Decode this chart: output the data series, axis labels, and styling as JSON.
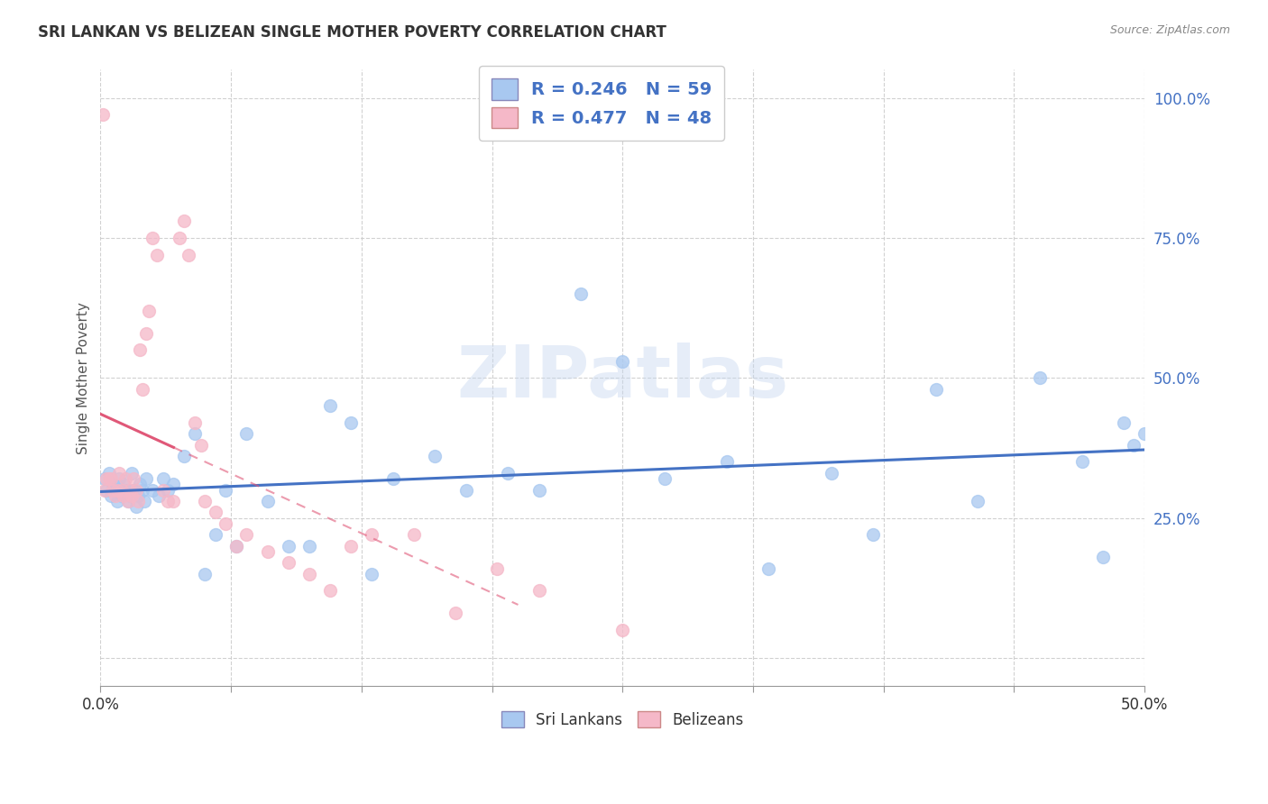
{
  "title": "SRI LANKAN VS BELIZEAN SINGLE MOTHER POVERTY CORRELATION CHART",
  "source": "Source: ZipAtlas.com",
  "ylabel": "Single Mother Poverty",
  "legend_label1": "Sri Lankans",
  "legend_label2": "Belizeans",
  "sri_lankan_R": "0.246",
  "sri_lankan_N": "59",
  "belizean_R": "0.477",
  "belizean_N": "48",
  "xlim": [
    0.0,
    0.5
  ],
  "ylim": [
    -0.05,
    1.05
  ],
  "yticks": [
    0.0,
    0.25,
    0.5,
    0.75,
    1.0
  ],
  "ytick_labels": [
    "",
    "25.0%",
    "50.0%",
    "75.0%",
    "100.0%"
  ],
  "xticks": [
    0.0,
    0.0625,
    0.125,
    0.1875,
    0.25,
    0.3125,
    0.375,
    0.4375,
    0.5
  ],
  "xtick_labels_show": [
    "0.0%",
    "",
    "",
    "",
    "",
    "",
    "",
    "",
    "50.0%"
  ],
  "sri_lankan_color": "#a8c8f0",
  "belizean_color": "#f5b8c8",
  "regression_sri_color": "#4472c4",
  "regression_beli_color": "#e05878",
  "watermark": "ZIPatlas",
  "background_color": "#ffffff",
  "sri_lankans_x": [
    0.002,
    0.003,
    0.004,
    0.005,
    0.006,
    0.007,
    0.008,
    0.009,
    0.01,
    0.011,
    0.012,
    0.013,
    0.014,
    0.015,
    0.016,
    0.017,
    0.018,
    0.019,
    0.02,
    0.021,
    0.022,
    0.025,
    0.028,
    0.03,
    0.032,
    0.035,
    0.04,
    0.045,
    0.05,
    0.055,
    0.06,
    0.065,
    0.07,
    0.08,
    0.09,
    0.1,
    0.11,
    0.12,
    0.13,
    0.14,
    0.16,
    0.175,
    0.195,
    0.21,
    0.23,
    0.25,
    0.27,
    0.3,
    0.32,
    0.35,
    0.37,
    0.4,
    0.42,
    0.45,
    0.47,
    0.48,
    0.49,
    0.495,
    0.5
  ],
  "sri_lankans_y": [
    0.32,
    0.3,
    0.33,
    0.29,
    0.31,
    0.3,
    0.28,
    0.32,
    0.29,
    0.31,
    0.3,
    0.28,
    0.29,
    0.33,
    0.3,
    0.27,
    0.29,
    0.31,
    0.3,
    0.28,
    0.32,
    0.3,
    0.29,
    0.32,
    0.3,
    0.31,
    0.36,
    0.4,
    0.15,
    0.22,
    0.3,
    0.2,
    0.4,
    0.28,
    0.2,
    0.2,
    0.45,
    0.42,
    0.15,
    0.32,
    0.36,
    0.3,
    0.33,
    0.3,
    0.65,
    0.53,
    0.32,
    0.35,
    0.16,
    0.33,
    0.22,
    0.48,
    0.28,
    0.5,
    0.35,
    0.18,
    0.42,
    0.38,
    0.4
  ],
  "belizeans_x": [
    0.001,
    0.002,
    0.003,
    0.004,
    0.005,
    0.006,
    0.007,
    0.008,
    0.009,
    0.01,
    0.011,
    0.012,
    0.013,
    0.014,
    0.015,
    0.016,
    0.017,
    0.018,
    0.019,
    0.02,
    0.022,
    0.023,
    0.025,
    0.027,
    0.03,
    0.032,
    0.035,
    0.038,
    0.04,
    0.042,
    0.045,
    0.048,
    0.05,
    0.055,
    0.06,
    0.065,
    0.07,
    0.08,
    0.09,
    0.1,
    0.11,
    0.12,
    0.13,
    0.15,
    0.17,
    0.19,
    0.21,
    0.25
  ],
  "belizeans_y": [
    0.97,
    0.3,
    0.32,
    0.32,
    0.32,
    0.3,
    0.29,
    0.3,
    0.33,
    0.3,
    0.29,
    0.32,
    0.28,
    0.3,
    0.29,
    0.32,
    0.3,
    0.28,
    0.55,
    0.48,
    0.58,
    0.62,
    0.75,
    0.72,
    0.3,
    0.28,
    0.28,
    0.75,
    0.78,
    0.72,
    0.42,
    0.38,
    0.28,
    0.26,
    0.24,
    0.2,
    0.22,
    0.19,
    0.17,
    0.15,
    0.12,
    0.2,
    0.22,
    0.22,
    0.08,
    0.16,
    0.12,
    0.05
  ]
}
